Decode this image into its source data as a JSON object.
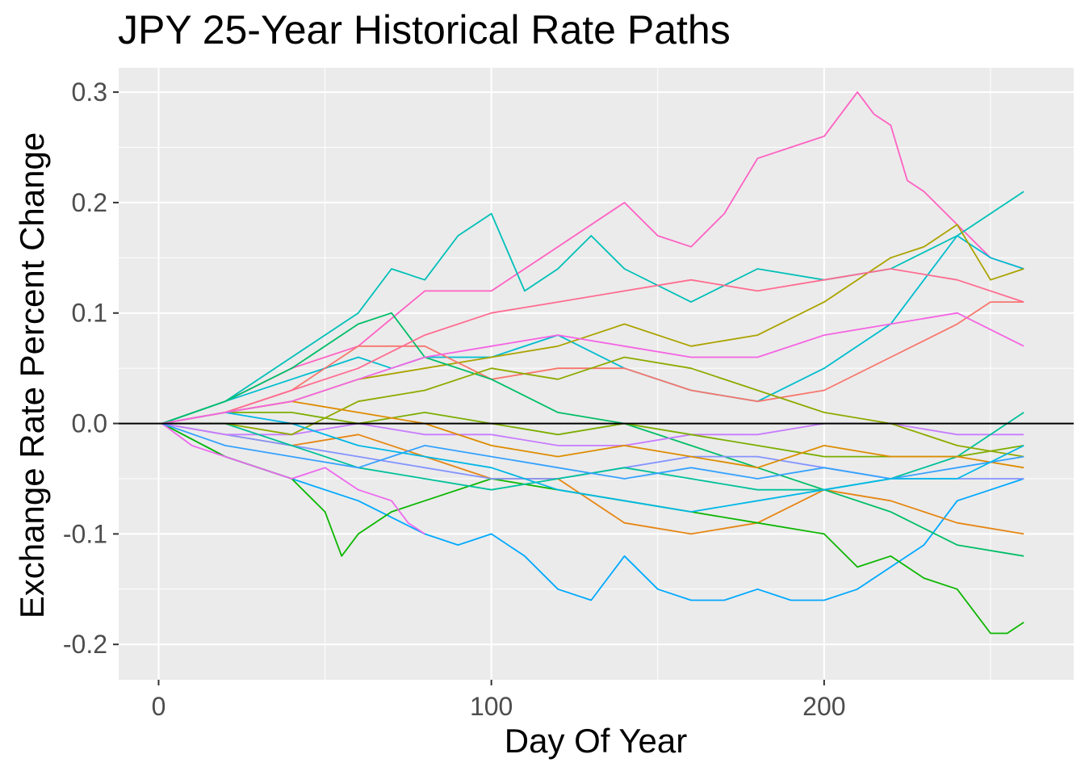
{
  "chart_data": {
    "type": "line",
    "title": "JPY 25-Year Historical Rate Paths",
    "xlabel": "Day Of Year",
    "ylabel": "Exchange Rate Percent Change",
    "xlim": [
      -12,
      275
    ],
    "ylim": [
      -0.232,
      0.322
    ],
    "x_ticks": [
      0,
      100,
      200
    ],
    "x_tick_labels": [
      "0",
      "100",
      "200"
    ],
    "y_ticks": [
      -0.2,
      -0.1,
      0.0,
      0.1,
      0.2,
      0.3
    ],
    "y_tick_labels": [
      "-0.2",
      "-0.1",
      "0.0",
      "0.1",
      "0.2",
      "0.3"
    ],
    "grid": true,
    "reference_line_y": 0,
    "legend": "none",
    "series": [
      {
        "color": "#FF61C3",
        "x": [
          1,
          20,
          40,
          60,
          80,
          100,
          120,
          140,
          150,
          160,
          170,
          180,
          190,
          200,
          210,
          215,
          220,
          225,
          230,
          240,
          250,
          260
        ],
        "y": [
          0,
          0.02,
          0.05,
          0.07,
          0.12,
          0.12,
          0.16,
          0.2,
          0.17,
          0.16,
          0.19,
          0.24,
          0.25,
          0.26,
          0.3,
          0.28,
          0.27,
          0.22,
          0.21,
          0.18,
          0.15,
          0.14
        ]
      },
      {
        "color": "#00C0B8",
        "x": [
          1,
          20,
          40,
          60,
          70,
          80,
          90,
          100,
          110,
          120,
          130,
          140,
          160,
          180,
          200,
          220,
          240,
          260
        ],
        "y": [
          0,
          0.02,
          0.06,
          0.1,
          0.14,
          0.13,
          0.17,
          0.19,
          0.12,
          0.14,
          0.17,
          0.14,
          0.11,
          0.14,
          0.13,
          0.14,
          0.17,
          0.21
        ]
      },
      {
        "color": "#00BDD0",
        "x": [
          1,
          20,
          40,
          60,
          70,
          80,
          100,
          120,
          140,
          160,
          180,
          200,
          210,
          220,
          230,
          240,
          250,
          260
        ],
        "y": [
          0,
          0.02,
          0.04,
          0.06,
          0.05,
          0.06,
          0.06,
          0.08,
          0.05,
          0.03,
          0.02,
          0.05,
          0.07,
          0.09,
          0.13,
          0.17,
          0.15,
          0.14
        ]
      },
      {
        "color": "#00A9FF",
        "x": [
          1,
          20,
          40,
          60,
          80,
          90,
          100,
          110,
          120,
          130,
          140,
          150,
          160,
          170,
          180,
          190,
          200,
          210,
          220,
          230,
          240,
          250,
          260
        ],
        "y": [
          0,
          -0.03,
          -0.05,
          -0.07,
          -0.1,
          -0.11,
          -0.1,
          -0.12,
          -0.15,
          -0.16,
          -0.12,
          -0.15,
          -0.16,
          -0.16,
          -0.15,
          -0.16,
          -0.16,
          -0.15,
          -0.13,
          -0.11,
          -0.07,
          -0.06,
          -0.05
        ]
      },
      {
        "color": "#ABA300",
        "x": [
          1,
          20,
          40,
          60,
          80,
          100,
          120,
          140,
          160,
          180,
          200,
          220,
          230,
          240,
          250,
          260
        ],
        "y": [
          0,
          0.01,
          0.02,
          0.04,
          0.05,
          0.06,
          0.07,
          0.09,
          0.07,
          0.08,
          0.11,
          0.15,
          0.16,
          0.18,
          0.13,
          0.14
        ]
      },
      {
        "color": "#F8766D",
        "x": [
          1,
          20,
          40,
          60,
          80,
          100,
          120,
          140,
          160,
          180,
          200,
          220,
          240,
          250,
          260
        ],
        "y": [
          0,
          0.01,
          0.03,
          0.07,
          0.07,
          0.04,
          0.05,
          0.05,
          0.03,
          0.02,
          0.03,
          0.06,
          0.09,
          0.11,
          0.11
        ]
      },
      {
        "color": "#E68613",
        "x": [
          1,
          20,
          40,
          60,
          80,
          100,
          120,
          140,
          160,
          180,
          200,
          220,
          240,
          260
        ],
        "y": [
          0,
          -0.01,
          -0.02,
          -0.01,
          -0.03,
          -0.05,
          -0.05,
          -0.09,
          -0.1,
          -0.09,
          -0.06,
          -0.07,
          -0.09,
          -0.1
        ]
      },
      {
        "color": "#0CB702",
        "x": [
          1,
          20,
          40,
          50,
          55,
          60,
          70,
          80,
          100,
          120,
          140,
          160,
          180,
          200,
          210,
          220,
          230,
          240,
          250,
          255,
          260
        ],
        "y": [
          0,
          -0.03,
          -0.05,
          -0.08,
          -0.12,
          -0.1,
          -0.08,
          -0.07,
          -0.05,
          -0.06,
          -0.07,
          -0.08,
          -0.09,
          -0.1,
          -0.13,
          -0.12,
          -0.14,
          -0.15,
          -0.19,
          -0.19,
          -0.18
        ]
      },
      {
        "color": "#00BE67",
        "x": [
          1,
          20,
          40,
          60,
          70,
          80,
          100,
          120,
          140,
          160,
          180,
          200,
          220,
          240,
          260
        ],
        "y": [
          0,
          0.02,
          0.05,
          0.09,
          0.1,
          0.06,
          0.04,
          0.01,
          0.0,
          -0.02,
          -0.04,
          -0.06,
          -0.08,
          -0.11,
          -0.12
        ]
      },
      {
        "color": "#8494FF",
        "x": [
          1,
          20,
          40,
          60,
          80,
          100,
          120,
          140,
          160,
          180,
          200,
          220,
          240,
          260
        ],
        "y": [
          0,
          -0.01,
          -0.02,
          -0.03,
          -0.04,
          -0.05,
          -0.05,
          -0.04,
          -0.03,
          -0.03,
          -0.04,
          -0.05,
          -0.05,
          -0.05
        ]
      },
      {
        "color": "#C77CFF",
        "x": [
          1,
          20,
          40,
          60,
          80,
          100,
          120,
          140,
          160,
          180,
          200,
          220,
          240,
          260
        ],
        "y": [
          0,
          -0.01,
          -0.01,
          0.0,
          -0.01,
          -0.01,
          -0.02,
          -0.02,
          -0.01,
          -0.01,
          0.0,
          0.0,
          -0.01,
          -0.01
        ]
      },
      {
        "color": "#ED68ED",
        "x": [
          1,
          10,
          20,
          30,
          40,
          50,
          60,
          70,
          75,
          80
        ],
        "y": [
          0,
          -0.02,
          -0.03,
          -0.04,
          -0.05,
          -0.04,
          -0.06,
          -0.07,
          -0.09,
          -0.1
        ]
      },
      {
        "color": "#00C19A",
        "x": [
          1,
          20,
          40,
          60,
          80,
          100,
          120,
          140,
          160,
          180,
          200,
          220,
          240,
          260
        ],
        "y": [
          0,
          0.0,
          -0.02,
          -0.04,
          -0.05,
          -0.06,
          -0.05,
          -0.04,
          -0.05,
          -0.06,
          -0.06,
          -0.05,
          -0.03,
          0.01
        ]
      },
      {
        "color": "#7CAE00",
        "x": [
          1,
          20,
          40,
          60,
          80,
          100,
          120,
          140,
          160,
          180,
          200,
          220,
          240,
          260
        ],
        "y": [
          0,
          0.01,
          0.01,
          0.0,
          0.01,
          0.0,
          -0.01,
          0.0,
          -0.01,
          -0.02,
          -0.03,
          -0.03,
          -0.03,
          -0.02
        ]
      },
      {
        "color": "#8FAA00",
        "x": [
          1,
          20,
          40,
          60,
          80,
          100,
          120,
          140,
          160,
          180,
          200,
          220,
          240,
          260
        ],
        "y": [
          0,
          0.0,
          -0.01,
          0.02,
          0.03,
          0.05,
          0.04,
          0.06,
          0.05,
          0.03,
          0.01,
          0.0,
          -0.02,
          -0.03
        ]
      },
      {
        "color": "#DE8C00",
        "x": [
          1,
          20,
          40,
          60,
          80,
          100,
          120,
          140,
          160,
          180,
          200,
          220,
          240,
          260
        ],
        "y": [
          0,
          0.01,
          0.02,
          0.01,
          0.0,
          -0.02,
          -0.03,
          -0.02,
          -0.03,
          -0.04,
          -0.02,
          -0.03,
          -0.03,
          -0.04
        ]
      },
      {
        "color": "#35A2FF",
        "x": [
          1,
          20,
          40,
          60,
          80,
          100,
          120,
          140,
          160,
          180,
          200,
          220,
          240,
          260
        ],
        "y": [
          0,
          -0.02,
          -0.03,
          -0.04,
          -0.02,
          -0.03,
          -0.04,
          -0.05,
          -0.04,
          -0.05,
          -0.04,
          -0.05,
          -0.04,
          -0.03
        ]
      },
      {
        "color": "#00B8E7",
        "x": [
          1,
          20,
          40,
          60,
          80,
          100,
          120,
          140,
          160,
          180,
          200,
          220,
          240,
          260
        ],
        "y": [
          0,
          0.01,
          0.0,
          -0.02,
          -0.03,
          -0.04,
          -0.06,
          -0.07,
          -0.08,
          -0.07,
          -0.06,
          -0.05,
          -0.05,
          -0.02
        ]
      },
      {
        "color": "#FF6C91",
        "x": [
          1,
          20,
          40,
          60,
          80,
          100,
          120,
          140,
          160,
          180,
          200,
          220,
          240,
          260
        ],
        "y": [
          0,
          0.01,
          0.03,
          0.05,
          0.08,
          0.1,
          0.11,
          0.12,
          0.13,
          0.12,
          0.13,
          0.14,
          0.13,
          0.11
        ]
      },
      {
        "color": "#F564E3",
        "x": [
          1,
          20,
          40,
          60,
          80,
          100,
          120,
          140,
          160,
          180,
          200,
          220,
          240,
          260
        ],
        "y": [
          0,
          0.01,
          0.02,
          0.04,
          0.06,
          0.07,
          0.08,
          0.07,
          0.06,
          0.06,
          0.08,
          0.09,
          0.1,
          0.07
        ]
      }
    ]
  }
}
